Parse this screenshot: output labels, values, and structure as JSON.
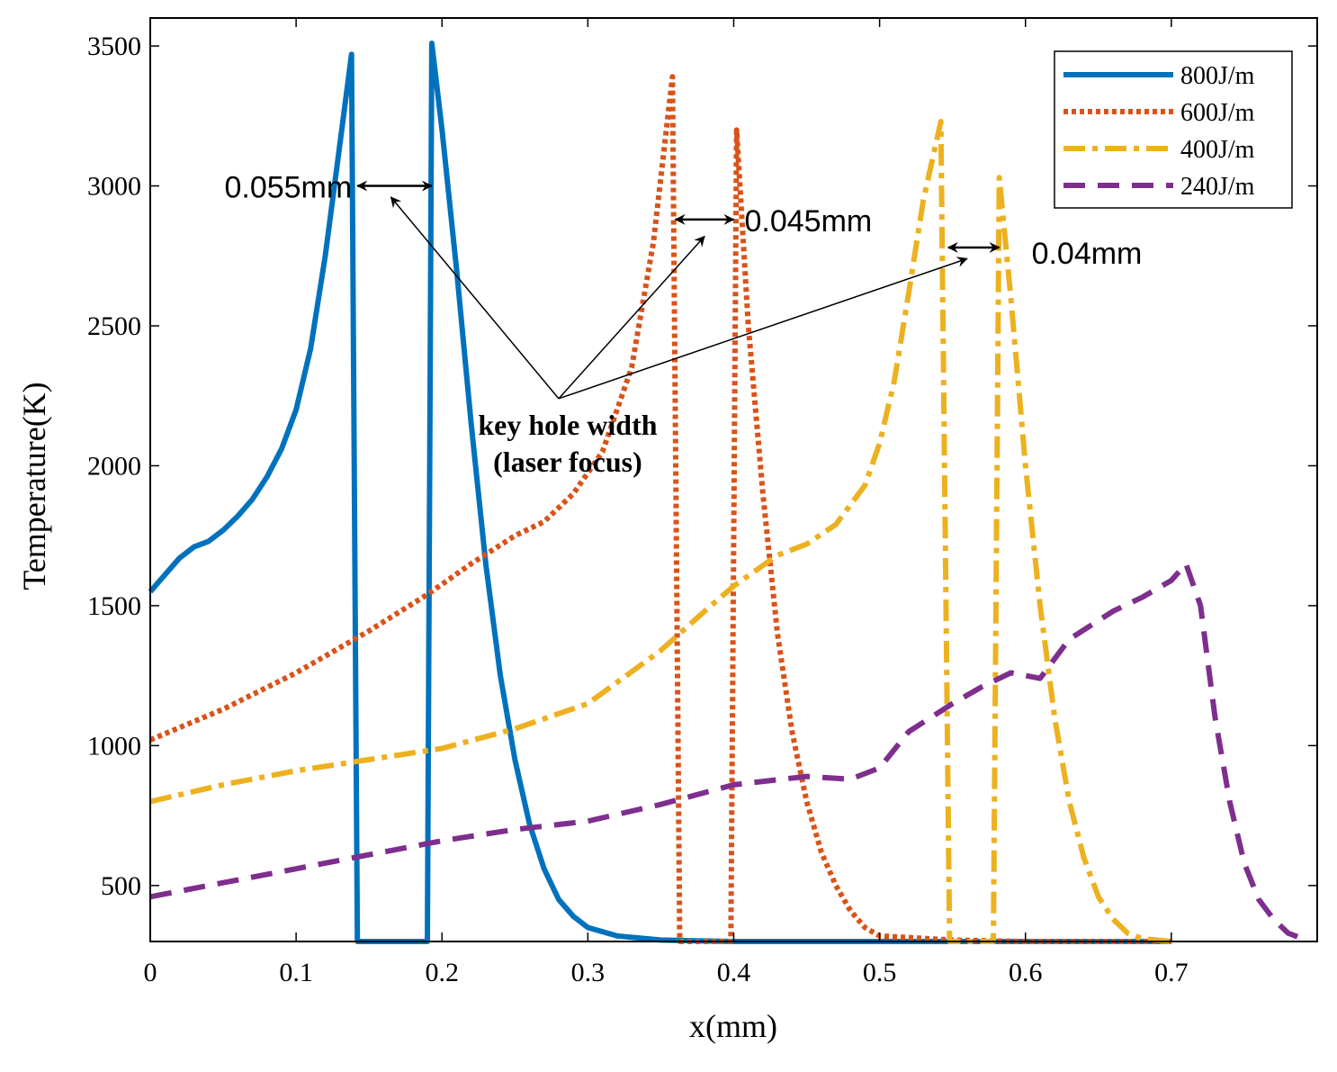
{
  "chart_data": {
    "type": "line",
    "title": "",
    "xlabel": "x(mm)",
    "ylabel": "Temperature(K)",
    "xlim": [
      0,
      0.8
    ],
    "ylim": [
      300,
      3600
    ],
    "xticks": [
      0,
      0.1,
      0.2,
      0.3,
      0.4,
      0.5,
      0.6,
      0.7
    ],
    "xtick_labels": [
      "0",
      "0.1",
      "0.2",
      "0.3",
      "0.4",
      "0.5",
      "0.6",
      "0.7"
    ],
    "yticks": [
      500,
      1000,
      1500,
      2000,
      2500,
      3000,
      3500
    ],
    "ytick_labels": [
      "500",
      "1000",
      "1500",
      "2000",
      "2500",
      "3000",
      "3500"
    ],
    "grid": false,
    "legend_position": "top-right",
    "series": [
      {
        "name": "800J/m",
        "color": "#0072BD",
        "style": "solid",
        "points": [
          [
            0,
            1550
          ],
          [
            0.01,
            1610
          ],
          [
            0.02,
            1670
          ],
          [
            0.03,
            1710
          ],
          [
            0.04,
            1730
          ],
          [
            0.05,
            1770
          ],
          [
            0.06,
            1820
          ],
          [
            0.07,
            1880
          ],
          [
            0.08,
            1960
          ],
          [
            0.09,
            2060
          ],
          [
            0.1,
            2200
          ],
          [
            0.11,
            2420
          ],
          [
            0.12,
            2750
          ],
          [
            0.13,
            3150
          ],
          [
            0.138,
            3470
          ],
          [
            0.142,
            300
          ],
          [
            0.19,
            300
          ],
          [
            0.193,
            3510
          ],
          [
            0.2,
            3200
          ],
          [
            0.21,
            2700
          ],
          [
            0.22,
            2150
          ],
          [
            0.23,
            1650
          ],
          [
            0.24,
            1250
          ],
          [
            0.25,
            950
          ],
          [
            0.26,
            720
          ],
          [
            0.27,
            560
          ],
          [
            0.28,
            450
          ],
          [
            0.29,
            390
          ],
          [
            0.3,
            350
          ],
          [
            0.32,
            320
          ],
          [
            0.35,
            305
          ],
          [
            0.4,
            300
          ],
          [
            0.5,
            300
          ],
          [
            0.6,
            300
          ],
          [
            0.7,
            300
          ]
        ]
      },
      {
        "name": "600J/m",
        "color": "#D95319",
        "style": "dotted",
        "points": [
          [
            0,
            1020
          ],
          [
            0.05,
            1130
          ],
          [
            0.1,
            1260
          ],
          [
            0.15,
            1410
          ],
          [
            0.19,
            1540
          ],
          [
            0.22,
            1650
          ],
          [
            0.25,
            1750
          ],
          [
            0.27,
            1800
          ],
          [
            0.29,
            1900
          ],
          [
            0.31,
            2050
          ],
          [
            0.33,
            2350
          ],
          [
            0.345,
            2800
          ],
          [
            0.358,
            3390
          ],
          [
            0.363,
            300
          ],
          [
            0.398,
            300
          ],
          [
            0.402,
            3200
          ],
          [
            0.41,
            2500
          ],
          [
            0.42,
            1900
          ],
          [
            0.43,
            1400
          ],
          [
            0.44,
            1050
          ],
          [
            0.45,
            800
          ],
          [
            0.46,
            620
          ],
          [
            0.47,
            500
          ],
          [
            0.48,
            410
          ],
          [
            0.49,
            350
          ],
          [
            0.5,
            320
          ],
          [
            0.55,
            305
          ],
          [
            0.6,
            300
          ],
          [
            0.7,
            300
          ]
        ]
      },
      {
        "name": "400J/m",
        "color": "#EDB120",
        "style": "dashdot",
        "points": [
          [
            0,
            800
          ],
          [
            0.05,
            860
          ],
          [
            0.1,
            910
          ],
          [
            0.15,
            950
          ],
          [
            0.2,
            990
          ],
          [
            0.25,
            1060
          ],
          [
            0.3,
            1150
          ],
          [
            0.35,
            1340
          ],
          [
            0.38,
            1480
          ],
          [
            0.4,
            1570
          ],
          [
            0.43,
            1680
          ],
          [
            0.45,
            1720
          ],
          [
            0.47,
            1790
          ],
          [
            0.49,
            1930
          ],
          [
            0.5,
            2080
          ],
          [
            0.51,
            2300
          ],
          [
            0.52,
            2620
          ],
          [
            0.53,
            2950
          ],
          [
            0.542,
            3230
          ],
          [
            0.548,
            300
          ],
          [
            0.578,
            300
          ],
          [
            0.582,
            3030
          ],
          [
            0.59,
            2600
          ],
          [
            0.6,
            2000
          ],
          [
            0.61,
            1500
          ],
          [
            0.62,
            1100
          ],
          [
            0.63,
            800
          ],
          [
            0.64,
            600
          ],
          [
            0.65,
            460
          ],
          [
            0.66,
            380
          ],
          [
            0.67,
            330
          ],
          [
            0.68,
            310
          ],
          [
            0.7,
            300
          ]
        ]
      },
      {
        "name": "240J/m",
        "color": "#7E2F8E",
        "style": "dashed",
        "points": [
          [
            0,
            460
          ],
          [
            0.05,
            510
          ],
          [
            0.1,
            560
          ],
          [
            0.15,
            610
          ],
          [
            0.2,
            660
          ],
          [
            0.25,
            700
          ],
          [
            0.3,
            730
          ],
          [
            0.35,
            790
          ],
          [
            0.4,
            860
          ],
          [
            0.45,
            890
          ],
          [
            0.48,
            880
          ],
          [
            0.5,
            920
          ],
          [
            0.52,
            1050
          ],
          [
            0.55,
            1150
          ],
          [
            0.57,
            1210
          ],
          [
            0.59,
            1260
          ],
          [
            0.61,
            1240
          ],
          [
            0.63,
            1380
          ],
          [
            0.66,
            1480
          ],
          [
            0.68,
            1530
          ],
          [
            0.7,
            1590
          ],
          [
            0.71,
            1650
          ],
          [
            0.72,
            1500
          ],
          [
            0.73,
            1100
          ],
          [
            0.74,
            800
          ],
          [
            0.75,
            580
          ],
          [
            0.76,
            450
          ],
          [
            0.77,
            380
          ],
          [
            0.78,
            330
          ],
          [
            0.79,
            310
          ]
        ]
      }
    ],
    "annotations": {
      "widths": [
        {
          "label": "0.055mm",
          "x1": 0.142,
          "x2": 0.193,
          "y": 3000
        },
        {
          "label": "0.045mm",
          "x1": 0.36,
          "x2": 0.4,
          "y": 2880
        },
        {
          "label": "0.04mm",
          "x1": 0.547,
          "x2": 0.582,
          "y": 2780
        }
      ],
      "note": {
        "lines": [
          "key hole width",
          "(laser focus)"
        ],
        "anchor": [
          0.28,
          2240
        ],
        "targets": [
          [
            0.165,
            2960
          ],
          [
            0.38,
            2820
          ],
          [
            0.56,
            2740
          ]
        ]
      }
    }
  }
}
